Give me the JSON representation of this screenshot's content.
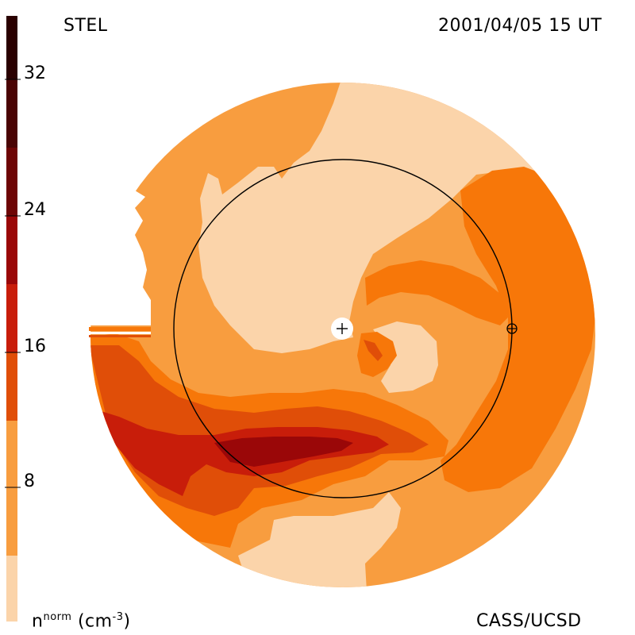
{
  "header": {
    "source": "STEL",
    "timestamp": "2001/04/05 15 UT"
  },
  "footer": {
    "units_base": "n",
    "units_sup": "norm",
    "units_paren": "(cm",
    "units_exp": "-3",
    "units_close": ")",
    "credit": "CASS/UCSD"
  },
  "colorbar": {
    "tick_labels": [
      "32",
      "24",
      "16",
      "8"
    ],
    "colors": [
      "#fbd4aa",
      "#f89d3f",
      "#f77709",
      "#e04e08",
      "#c81d0a",
      "#9a0708",
      "#6e0505",
      "#4a0404",
      "#2a0000"
    ]
  },
  "palette": {
    "level_1": "#fbd4aa",
    "level_2": "#f89d3f",
    "level_3": "#f77709",
    "level_4": "#e04e08",
    "level_5": "#c81d0a",
    "level_6": "#9a0708"
  }
}
